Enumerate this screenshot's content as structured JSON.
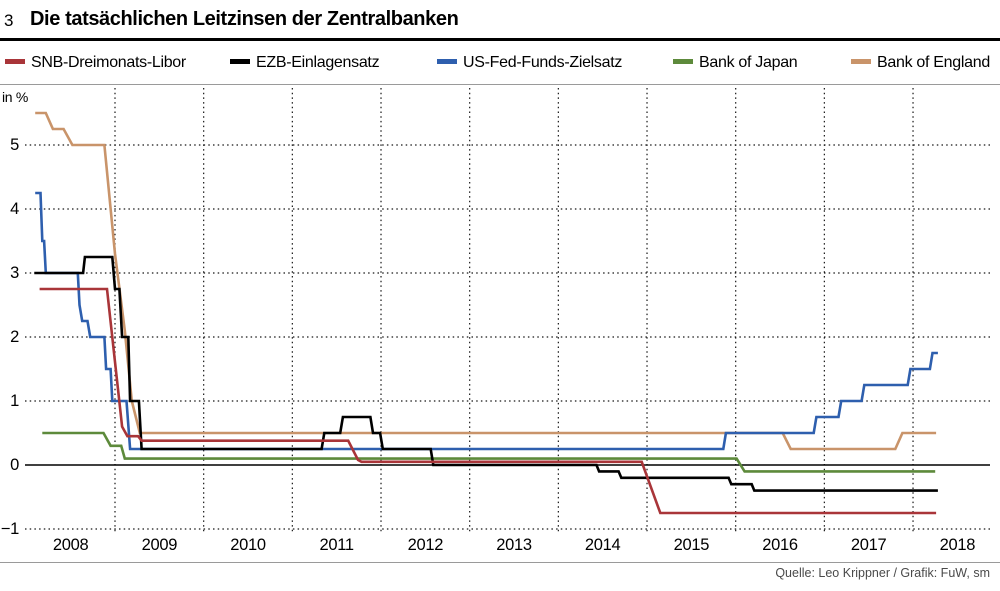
{
  "header": {
    "figure_number": "3",
    "title": "Die tatsächlichen Leitzinsen der Zentralbanken"
  },
  "axes": {
    "unit_label": "in %",
    "y_ticks": [
      {
        "value": 5,
        "label": "5"
      },
      {
        "value": 4,
        "label": "4"
      },
      {
        "value": 3,
        "label": "3"
      },
      {
        "value": 2,
        "label": "2"
      },
      {
        "value": 1,
        "label": "1"
      },
      {
        "value": 0,
        "label": "0"
      },
      {
        "value": -1,
        "label": "−1"
      }
    ],
    "x_ticks": [
      {
        "year": 2008,
        "label": "2008"
      },
      {
        "year": 2009,
        "label": "2009"
      },
      {
        "year": 2010,
        "label": "2010"
      },
      {
        "year": 2011,
        "label": "2011"
      },
      {
        "year": 2012,
        "label": "2012"
      },
      {
        "year": 2013,
        "label": "2013"
      },
      {
        "year": 2014,
        "label": "2014"
      },
      {
        "year": 2015,
        "label": "2015"
      },
      {
        "year": 2016,
        "label": "2016"
      },
      {
        "year": 2017,
        "label": "2017"
      },
      {
        "year": 2018,
        "label": "2018"
      }
    ]
  },
  "footer": {
    "source": "Quelle: Leo Krippner / Grafik: FuW, sm"
  },
  "chart_data": {
    "type": "line",
    "title": "Die tatsächlichen Leitzinsen der Zentralbanken",
    "ylabel": "in %",
    "xlim": [
      2007.99,
      2018.87
    ],
    "ylim": [
      -1.3,
      5.9
    ],
    "grid": "dotted",
    "zero_axis": true,
    "legend_position": "top",
    "series": [
      {
        "name": "Bank of England",
        "color": "#c9946a",
        "points": [
          [
            2008.1,
            5.5
          ],
          [
            2008.22,
            5.5
          ],
          [
            2008.3,
            5.25
          ],
          [
            2008.42,
            5.25
          ],
          [
            2008.52,
            5.0
          ],
          [
            2008.88,
            5.0
          ],
          [
            2009.0,
            3.3
          ],
          [
            2009.11,
            2.1
          ],
          [
            2009.19,
            1.0
          ],
          [
            2009.28,
            0.5
          ],
          [
            2016.53,
            0.5
          ],
          [
            2016.62,
            0.25
          ],
          [
            2017.8,
            0.25
          ],
          [
            2017.88,
            0.5
          ],
          [
            2018.26,
            0.5
          ]
        ]
      },
      {
        "name": "Bank of Japan",
        "color": "#5d8a3b",
        "points": [
          [
            2008.18,
            0.5
          ],
          [
            2008.87,
            0.5
          ],
          [
            2008.95,
            0.3
          ],
          [
            2009.07,
            0.3
          ],
          [
            2009.11,
            0.1
          ],
          [
            2016.01,
            0.1
          ],
          [
            2016.1,
            -0.1
          ],
          [
            2018.25,
            -0.1
          ]
        ]
      },
      {
        "name": "US-Fed-Funds-Zielsatz",
        "color": "#2e5fae",
        "points": [
          [
            2008.1,
            4.25
          ],
          [
            2008.16,
            4.25
          ],
          [
            2008.18,
            3.5
          ],
          [
            2008.2,
            3.5
          ],
          [
            2008.22,
            3.0
          ],
          [
            2008.58,
            3.0
          ],
          [
            2008.6,
            2.5
          ],
          [
            2008.63,
            2.25
          ],
          [
            2008.69,
            2.25
          ],
          [
            2008.72,
            2.0
          ],
          [
            2008.88,
            2.0
          ],
          [
            2008.9,
            1.5
          ],
          [
            2008.95,
            1.5
          ],
          [
            2008.97,
            1.0
          ],
          [
            2009.13,
            1.0
          ],
          [
            2009.17,
            0.25
          ],
          [
            2015.86,
            0.25
          ],
          [
            2015.89,
            0.5
          ],
          [
            2016.88,
            0.5
          ],
          [
            2016.91,
            0.75
          ],
          [
            2017.16,
            0.75
          ],
          [
            2017.19,
            1.0
          ],
          [
            2017.42,
            1.0
          ],
          [
            2017.45,
            1.25
          ],
          [
            2017.94,
            1.25
          ],
          [
            2017.97,
            1.5
          ],
          [
            2018.19,
            1.5
          ],
          [
            2018.22,
            1.75
          ],
          [
            2018.28,
            1.75
          ]
        ]
      },
      {
        "name": "EZB-Einlagensatz",
        "color": "#000000",
        "points": [
          [
            2008.09,
            3.0
          ],
          [
            2008.64,
            3.0
          ],
          [
            2008.66,
            3.25
          ],
          [
            2008.97,
            3.25
          ],
          [
            2009.0,
            2.75
          ],
          [
            2009.05,
            2.75
          ],
          [
            2009.08,
            2.0
          ],
          [
            2009.15,
            2.0
          ],
          [
            2009.17,
            1.0
          ],
          [
            2009.27,
            1.0
          ],
          [
            2009.3,
            0.25
          ],
          [
            2011.33,
            0.25
          ],
          [
            2011.36,
            0.5
          ],
          [
            2011.54,
            0.5
          ],
          [
            2011.57,
            0.75
          ],
          [
            2011.88,
            0.75
          ],
          [
            2011.91,
            0.5
          ],
          [
            2011.99,
            0.5
          ],
          [
            2012.02,
            0.25
          ],
          [
            2012.56,
            0.25
          ],
          [
            2012.59,
            0.0
          ],
          [
            2014.43,
            0.0
          ],
          [
            2014.46,
            -0.1
          ],
          [
            2014.68,
            -0.1
          ],
          [
            2014.71,
            -0.2
          ],
          [
            2015.92,
            -0.2
          ],
          [
            2015.95,
            -0.3
          ],
          [
            2016.18,
            -0.3
          ],
          [
            2016.21,
            -0.4
          ],
          [
            2018.28,
            -0.4
          ]
        ]
      },
      {
        "name": "SNB-Dreimonats-Libor",
        "color": "#a93539",
        "points": [
          [
            2008.15,
            2.75
          ],
          [
            2008.91,
            2.75
          ],
          [
            2009.08,
            0.6
          ],
          [
            2009.14,
            0.45
          ],
          [
            2009.26,
            0.45
          ],
          [
            2009.3,
            0.38
          ],
          [
            2011.63,
            0.38
          ],
          [
            2011.74,
            0.08
          ],
          [
            2011.78,
            0.05
          ],
          [
            2014.94,
            0.05
          ],
          [
            2015.15,
            -0.75
          ],
          [
            2018.26,
            -0.75
          ]
        ]
      }
    ],
    "legend_order": [
      "SNB-Dreimonats-Libor",
      "EZB-Einlagensatz",
      "US-Fed-Funds-Zielsatz",
      "Bank of Japan",
      "Bank of England"
    ]
  }
}
